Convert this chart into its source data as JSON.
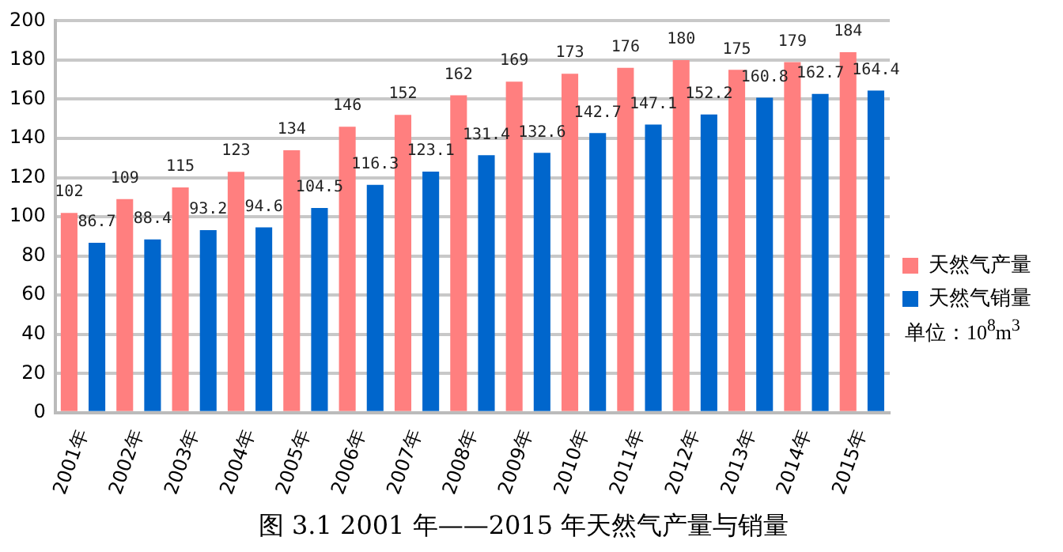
{
  "chart_data": {
    "type": "bar",
    "title": "图 3.1 2001 年——2015 年天然气产量与销量",
    "categories": [
      "2001年",
      "2002年",
      "2003年",
      "2004年",
      "2005年",
      "2006年",
      "2007年",
      "2008年",
      "2009年",
      "2010年",
      "2011年",
      "2012年",
      "2013年",
      "2014年",
      "2015年"
    ],
    "series": [
      {
        "name": "天然气产量",
        "color": "#ff7f7f",
        "values": [
          102,
          109,
          115,
          123,
          134,
          146,
          152,
          162,
          169,
          173,
          176,
          180,
          175,
          179,
          184
        ]
      },
      {
        "name": "天然气销量",
        "color": "#0066cc",
        "values": [
          86.7,
          88.4,
          93.2,
          94.6,
          104.5,
          116.3,
          123.1,
          131.4,
          132.6,
          142.7,
          147.1,
          152.2,
          160.8,
          162.7,
          164.4
        ]
      }
    ],
    "ylim": [
      0,
      200
    ],
    "yticks": [
      0,
      20,
      40,
      60,
      80,
      100,
      120,
      140,
      160,
      180,
      200
    ],
    "grid": "y",
    "legend": "right",
    "data_labels": true,
    "annotations": [
      "单位：10$^{8}$m$^{3}$"
    ]
  }
}
